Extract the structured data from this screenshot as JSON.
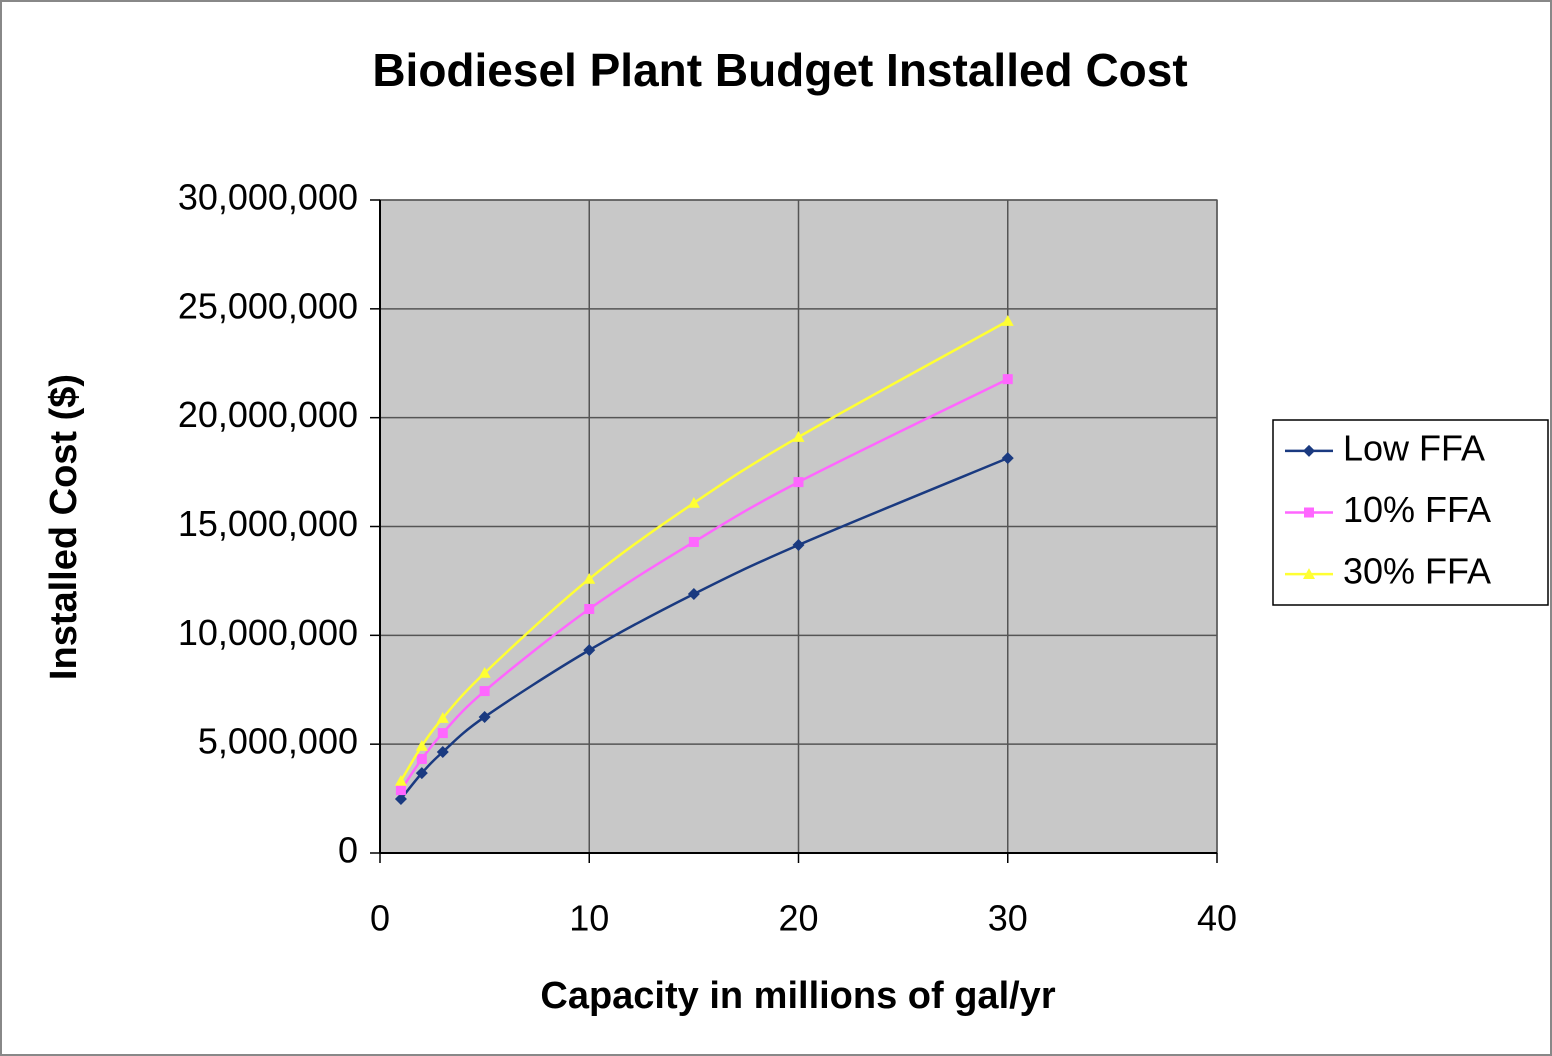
{
  "chart_data": {
    "type": "line",
    "title": "Biodiesel Plant Budget Installed Cost",
    "x_label": "Capacity in millions of gal/yr",
    "y_label": "Installed Cost ($)",
    "x": [
      1,
      2,
      3,
      5,
      10,
      15,
      20,
      30
    ],
    "series": [
      {
        "name": "Low FFA",
        "color": "#1a3a80",
        "marker": "diamond",
        "values": [
          2480000,
          3670000,
          4640000,
          6250000,
          9320000,
          11900000,
          14150000,
          18140000
        ]
      },
      {
        "name": "10% FFA",
        "color": "#ff66ff",
        "marker": "square",
        "values": [
          2890000,
          4320000,
          5510000,
          7440000,
          11210000,
          14290000,
          17040000,
          21770000
        ]
      },
      {
        "name": "30% FFA",
        "color": "#ffff33",
        "marker": "triangle",
        "values": [
          3310000,
          4920000,
          6200000,
          8270000,
          12590000,
          16080000,
          19110000,
          24440000
        ]
      }
    ],
    "xlim": [
      0,
      40
    ],
    "xticks": [
      0,
      10,
      20,
      30,
      40
    ],
    "ylim": [
      0,
      30000000
    ],
    "yticks": [
      0,
      {
        "value": 5000000,
        "label": "5,000,000"
      },
      {
        "value": 10000000,
        "label": "10,000,000"
      },
      {
        "value": 15000000,
        "label": "15,000,000"
      },
      {
        "value": 20000000,
        "label": "20,000,000"
      },
      {
        "value": 25000000,
        "label": "25,000,000"
      },
      {
        "value": 30000000,
        "label": "30,000,000"
      }
    ],
    "grid": true,
    "legend": "right"
  }
}
